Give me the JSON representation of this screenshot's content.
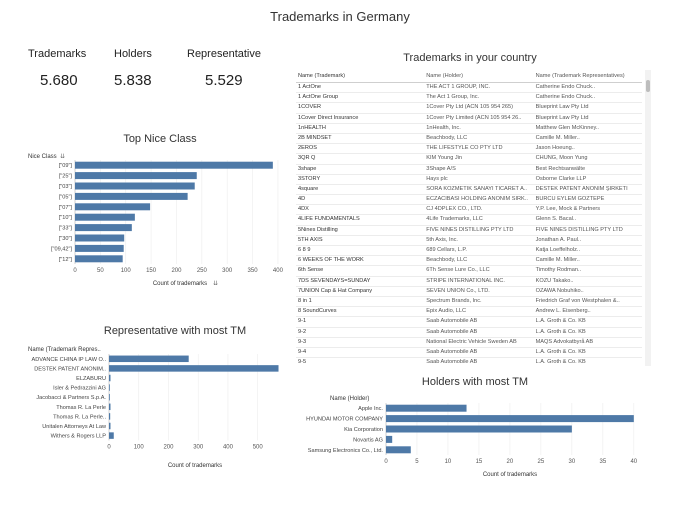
{
  "page": {
    "title": "Trademarks in Germany"
  },
  "kpis": [
    {
      "label": "Trademarks",
      "value": "5.680"
    },
    {
      "label": "Holders",
      "value": "5.838"
    },
    {
      "label": "Representative",
      "value": "5.529"
    }
  ],
  "table": {
    "title": "Trademarks in your country",
    "headers": [
      "Name (Trademark)",
      "Name (Holder)",
      "Name (Trademark Representatives)"
    ],
    "rows": [
      [
        "1 ActOne",
        "THE ACT 1 GROUP, INC.",
        "Catherine Endo Chuck.."
      ],
      [
        "1 ActOne Group",
        "The Act 1 Group, Inc.",
        "Catherine Endo Chuck.."
      ],
      [
        "1COVER",
        "1Cover Pty Ltd (ACN 105 954 265)",
        "Blueprint Law Pty Ltd"
      ],
      [
        "1Cover Direct Insurance",
        "1Cover Pty Limited (ACN 105 954 26..",
        "Blueprint Law Pty Ltd"
      ],
      [
        "1nHEALTH",
        "1nHealth, Inc.",
        "Matthew Glen McKinney.."
      ],
      [
        "2B MINDSET",
        "Beachbody, LLC",
        "Camille M. Miller.."
      ],
      [
        "2EROS",
        "THE LIFESTYLE CO PTY LTD",
        "Jason Hoeung.."
      ],
      [
        "3QR Q",
        "KIM Young Jin",
        "CHUNG, Moon Yung"
      ],
      [
        "3shape",
        "3Shape A/S",
        "Best Rechtsanwälte"
      ],
      [
        "3STORY",
        "Hays plc",
        "Osborne Clarke LLP"
      ],
      [
        "4square",
        "SORA KOZMETIK SANAYI TICARET A..",
        "DESTEK PATENT ANONIM ŞIRKETI"
      ],
      [
        "4D",
        "ECZACIBASI HOLDING ANONIM SIRK..",
        "BURCU EYLEM GOZTEPE"
      ],
      [
        "4DX",
        "CJ 4DPLEX CO., LTD.",
        "Y.P. Lee, Mock & Partners"
      ],
      [
        "4LIFE FUNDAMENTALS",
        "4Life Trademarks, LLC",
        "Glenn S. Bacal.."
      ],
      [
        "5Nines Distilling",
        "FIVE NINES DISTILLING PTY LTD",
        "FIVE NINES DISTILLING PTY LTD"
      ],
      [
        "5TH AXIS",
        "5th Axis, Inc.",
        "Jonathan A. Paul.."
      ],
      [
        "6 8 9",
        "689 Cellars, L.P.",
        "Katja Loeffelholz.."
      ],
      [
        "6 WEEKS OF THE WORK",
        "Beachbody, LLC",
        "Camille M. Miller.."
      ],
      [
        "6th Sense",
        "6Th Sense Lure Co., LLC",
        "Timothy Rodman.."
      ],
      [
        "7DS SEVENDAYS=SUNDAY",
        "STRIPE INTERNATIONAL INC.",
        "KOZU Takako.."
      ],
      [
        "7UNION Cap & Hat Company",
        "SEVEN UNION Co., LTD.",
        "OZAWA Nobuhiko.."
      ],
      [
        "8 in 1",
        "Spectrum Brands, Inc.",
        "Friedrich Graf von Westphalen &.."
      ],
      [
        "8 SoundCurves",
        "Epix Audio, LLC",
        "Andrew L. Eisenberg.."
      ],
      [
        "9-1",
        "Saab Automobile AB",
        "L.A. Groth & Co. KB"
      ],
      [
        "9-2",
        "Saab Automobile AB",
        "L.A. Groth & Co. KB"
      ],
      [
        "9-3",
        "National Electric Vehicle Sweden AB",
        "MAQS Advokatbyrå AB"
      ],
      [
        "9-4",
        "Saab Automobile AB",
        "L.A. Groth & Co. KB"
      ],
      [
        "9-5",
        "Saab Automobile AB",
        "L.A. Groth & Co. KB"
      ]
    ]
  },
  "chart_data": [
    {
      "type": "bar",
      "orientation": "horizontal",
      "title": "Top Nice Class",
      "dimension_label": "Nice Class",
      "categories": [
        "[\"09\"]",
        "[\"25\"]",
        "[\"03\"]",
        "[\"05\"]",
        "[\"07\"]",
        "[\"10\"]",
        "[\"33\"]",
        "[\"30\"]",
        "[\"09,42\"]",
        "[\"12\"]"
      ],
      "values": [
        390,
        240,
        236,
        222,
        148,
        118,
        112,
        97,
        96,
        94
      ],
      "xlabel": "Count of trademarks",
      "xticks": [
        0,
        50,
        100,
        150,
        200,
        250,
        300,
        350,
        400
      ],
      "xlim": [
        0,
        410
      ],
      "color": "#4e79a7"
    },
    {
      "type": "bar",
      "orientation": "horizontal",
      "title": "Representative with most TM",
      "dimension_label": "Name (Trademark Repres..",
      "categories": [
        "ADVANCE CHINA IP LAW O..",
        "DESTEK PATENT ANONIM..",
        "ELZABURU",
        "Isler & Pedrazzini AG",
        "Jacobacci & Partners S.p.A.",
        "Thomas R. La Perle",
        "Thomas R. La Perle..",
        "Unitalen Attorneys At Law",
        "Withers & Rogers LLP"
      ],
      "values": [
        268,
        570,
        5,
        2,
        2,
        5,
        4,
        5,
        16
      ],
      "xlabel": "Count of trademarks",
      "xticks": [
        0,
        100,
        200,
        300,
        400,
        500
      ],
      "xlim": [
        0,
        575
      ],
      "color": "#4e79a7"
    },
    {
      "type": "bar",
      "orientation": "horizontal",
      "title": "Holders with most TM",
      "dimension_label": "Name (Holder)",
      "categories": [
        "Apple Inc.",
        "HYUNDAI MOTOR COMPANY",
        "Kia Corporation",
        "Novartis AG",
        "Samsung Electronics Co., Ltd."
      ],
      "values": [
        13,
        40,
        30,
        1,
        4
      ],
      "xlabel": "Count of trademarks",
      "xticks": [
        0,
        5,
        10,
        15,
        20,
        25,
        30,
        35,
        40
      ],
      "xlim": [
        0,
        41
      ],
      "color": "#4e79a7"
    }
  ],
  "icons": {
    "sort": "sort-icon"
  }
}
